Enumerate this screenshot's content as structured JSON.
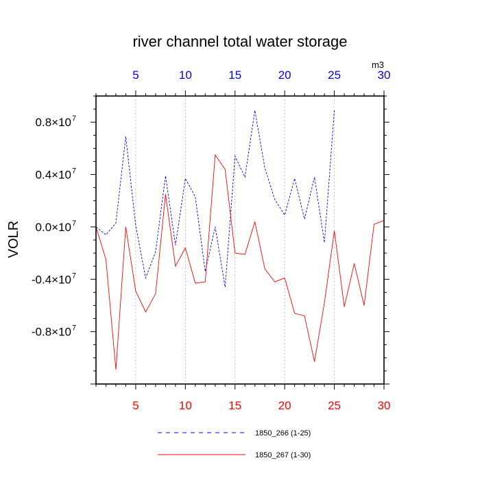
{
  "colors": {
    "top_axis": "#0000ff",
    "bottom_axis": "#ff0000",
    "series1": "#0000ff",
    "series2": "#ff0000",
    "frame": "#000000",
    "grid": "#999999"
  },
  "chart_data": {
    "type": "line",
    "title": "river channel total water storage",
    "ylabel": "VOLR",
    "units": "m3",
    "xlim": [
      1,
      30
    ],
    "ylim": [
      -12000000.0,
      10000000.0
    ],
    "x_ticks": [
      5,
      10,
      15,
      20,
      25,
      30
    ],
    "x_tick_labels": [
      "5",
      "10",
      "15",
      "20",
      "25",
      "30"
    ],
    "y_tick_labels": [
      {
        "value": 8000000.0,
        "mantissa": "0.8",
        "base": "×10",
        "exp": "7"
      },
      {
        "value": 4000000.0,
        "mantissa": "0.4",
        "base": "×10",
        "exp": "7"
      },
      {
        "value": 0.0,
        "mantissa": "0.0",
        "base": "×10",
        "exp": "7"
      },
      {
        "value": -4000000.0,
        "mantissa": "-0.4",
        "base": "×10",
        "exp": "7"
      },
      {
        "value": -8000000.0,
        "mantissa": "-0.8",
        "base": "×10",
        "exp": "7"
      }
    ],
    "grid": "vertical dashed at major x ticks",
    "legend_position": "bottom",
    "series": [
      {
        "name": "1850_266 (1-25)",
        "style": "dashed",
        "x": [
          1,
          2,
          3,
          4,
          5,
          6,
          7,
          8,
          9,
          10,
          11,
          12,
          13,
          14,
          15,
          16,
          17,
          18,
          19,
          20,
          21,
          22,
          23,
          24,
          25
        ],
        "values": [
          0.0,
          -600000.0,
          300000.0,
          6900000.0,
          100000.0,
          -3900000.0,
          -1900000.0,
          3900000.0,
          -1400000.0,
          3700000.0,
          2300000.0,
          -3400000.0,
          0.0,
          -4600000.0,
          5400000.0,
          3800000.0,
          8900000.0,
          4500000.0,
          2100000.0,
          900000.0,
          3700000.0,
          600000.0,
          3800000.0,
          -1200000.0,
          8900000.0
        ]
      },
      {
        "name": "1850_267 (1-30)",
        "style": "solid",
        "x": [
          1,
          2,
          3,
          4,
          5,
          6,
          7,
          8,
          9,
          10,
          11,
          12,
          13,
          14,
          15,
          16,
          17,
          18,
          19,
          20,
          21,
          22,
          23,
          24,
          25,
          26,
          27,
          28,
          29,
          30
        ],
        "values": [
          0.0,
          -2500000.0,
          -10900000.0,
          0.0,
          -4900000.0,
          -6500000.0,
          -5100000.0,
          2500000.0,
          -3000000.0,
          -1600000.0,
          -4300000.0,
          -4200000.0,
          5500000.0,
          4400000.0,
          -2000000.0,
          -2100000.0,
          400000.0,
          -3200000.0,
          -4200000.0,
          -3900000.0,
          -6600000.0,
          -6800000.0,
          -10300000.0,
          -5800000.0,
          -300000.0,
          -6100000.0,
          -2800000.0,
          -6000000.0,
          200000.0,
          500000.0
        ]
      }
    ]
  }
}
